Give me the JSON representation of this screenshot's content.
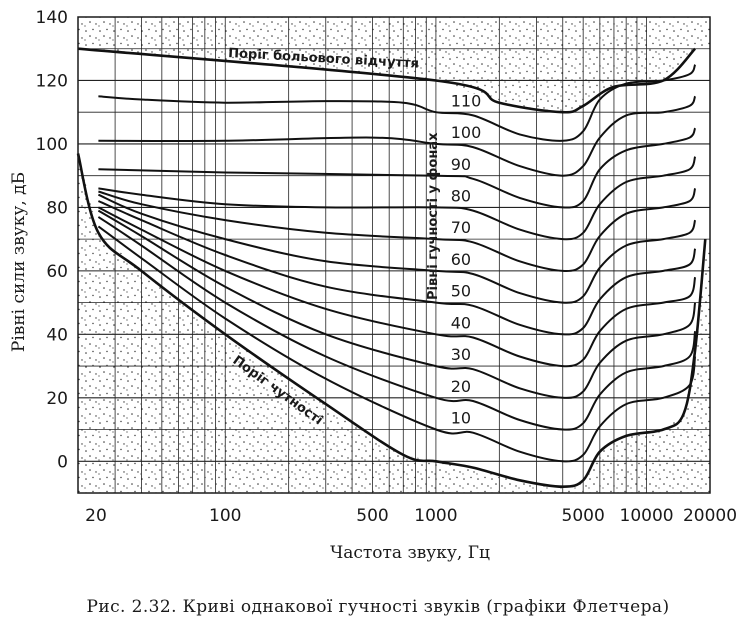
{
  "chart_data": {
    "type": "line",
    "caption": "Рис. 2.32. Криві однакової гучності звуків (графіки Флетчера)",
    "xlabel": "Частота звуку, Гц",
    "ylabel": "Рівні сили звуку, дБ",
    "x_scale": "log",
    "xlim": [
      20,
      20000
    ],
    "ylim": [
      -10,
      140
    ],
    "x_ticks": [
      20,
      100,
      500,
      1000,
      5000,
      10000,
      20000
    ],
    "x_tick_labels": [
      "20",
      "100",
      "500",
      "1000",
      "5000",
      "10000",
      "20000"
    ],
    "y_ticks": [
      0,
      20,
      40,
      60,
      80,
      100,
      120,
      140
    ],
    "y_tick_labels": [
      "0",
      "20",
      "40",
      "60",
      "80",
      "100",
      "120",
      "140"
    ],
    "grid": true,
    "pain_threshold_label": "Поріг больового відчуття",
    "hearing_threshold_label": "Поріг чутності",
    "loudness_axis_label": "Рівні гучності у фонах",
    "series": [
      {
        "name": "Поріг больового відчуття",
        "x": [
          20,
          1000,
          2000,
          4000,
          5000,
          7000,
          12000,
          17000
        ],
        "y": [
          130,
          120,
          113,
          110,
          112,
          118,
          120,
          130
        ]
      },
      {
        "name": "110",
        "x": [
          25,
          40,
          100,
          300,
          700,
          1000,
          1500,
          2500,
          4000,
          5000,
          6000,
          8000,
          12000,
          16000,
          17000
        ],
        "y": [
          115,
          114,
          113,
          113.5,
          113,
          110,
          109,
          103,
          101,
          104,
          114,
          119,
          120,
          122,
          125
        ]
      },
      {
        "name": "100",
        "x": [
          25,
          100,
          500,
          1000,
          1500,
          2500,
          4000,
          5000,
          6000,
          8000,
          12000,
          16000,
          17000
        ],
        "y": [
          101,
          101,
          102,
          100,
          99,
          93,
          90,
          93,
          102,
          109,
          110,
          112,
          115
        ]
      },
      {
        "name": "90",
        "x": [
          25,
          100,
          1000,
          1500,
          2500,
          4000,
          5000,
          6000,
          8000,
          12000,
          16000,
          17000
        ],
        "y": [
          92,
          91,
          90,
          89,
          83,
          80,
          82,
          92,
          98,
          100,
          102,
          105
        ]
      },
      {
        "name": "80",
        "x": [
          25,
          40,
          100,
          300,
          1000,
          1500,
          2500,
          4000,
          5000,
          6000,
          8000,
          12000,
          16000,
          17000
        ],
        "y": [
          86,
          84,
          81,
          80,
          80,
          79,
          73,
          70,
          72,
          81,
          88,
          90,
          92,
          96
        ]
      },
      {
        "name": "70",
        "x": [
          25,
          40,
          100,
          300,
          1000,
          1500,
          2500,
          4000,
          5000,
          6000,
          8000,
          12000,
          16000,
          17000
        ],
        "y": [
          85,
          81,
          76,
          72,
          70,
          69,
          63,
          60,
          62,
          71,
          78,
          80,
          82,
          86
        ]
      },
      {
        "name": "60",
        "x": [
          25,
          40,
          100,
          300,
          1000,
          1500,
          2500,
          4000,
          5000,
          6000,
          8000,
          12000,
          16000,
          17000
        ],
        "y": [
          84,
          78,
          70,
          63,
          60,
          59,
          53,
          50,
          52,
          61,
          68,
          70,
          72,
          76
        ]
      },
      {
        "name": "50",
        "x": [
          25,
          40,
          100,
          300,
          1000,
          1500,
          2500,
          4000,
          5000,
          6000,
          8000,
          12000,
          16000,
          17000
        ],
        "y": [
          82,
          76,
          65,
          55,
          50,
          49,
          43,
          40,
          42,
          51,
          58,
          60,
          62,
          67
        ]
      },
      {
        "name": "40",
        "x": [
          25,
          40,
          100,
          300,
          1000,
          1500,
          2500,
          4000,
          5000,
          6000,
          8000,
          12000,
          16000,
          17000
        ],
        "y": [
          80,
          73,
          60,
          48,
          40,
          39,
          33,
          30,
          32,
          41,
          48,
          50,
          52,
          58
        ]
      },
      {
        "name": "30",
        "x": [
          25,
          40,
          100,
          300,
          1000,
          1500,
          2500,
          4000,
          5000,
          6000,
          8000,
          12000,
          16000,
          17000
        ],
        "y": [
          79,
          71,
          55,
          40,
          30,
          29,
          23,
          20,
          22,
          31,
          38,
          40,
          43,
          50
        ]
      },
      {
        "name": "20",
        "x": [
          25,
          40,
          100,
          300,
          1000,
          1500,
          2500,
          4000,
          5000,
          6000,
          8000,
          12000,
          16000,
          17000
        ],
        "y": [
          77,
          68,
          50,
          33,
          20,
          19,
          13,
          10,
          12,
          21,
          28,
          30,
          33,
          41
        ]
      },
      {
        "name": "10",
        "x": [
          25,
          40,
          100,
          300,
          1000,
          1500,
          2500,
          4000,
          5000,
          6000,
          8000,
          12000,
          16000,
          17000
        ],
        "y": [
          74,
          64,
          45,
          26,
          10,
          9,
          3,
          0,
          2,
          11,
          18,
          20,
          24,
          33
        ]
      },
      {
        "name": "Поріг чутності",
        "x": [
          20,
          25,
          40,
          100,
          300,
          700,
          1000,
          1500,
          2500,
          4000,
          5000,
          6000,
          8000,
          12000,
          15000,
          17000,
          19000
        ],
        "y": [
          97,
          72,
          60,
          40,
          18,
          2,
          0,
          -2,
          -6,
          -8,
          -6,
          3,
          8,
          10,
          15,
          35,
          70
        ]
      }
    ]
  }
}
